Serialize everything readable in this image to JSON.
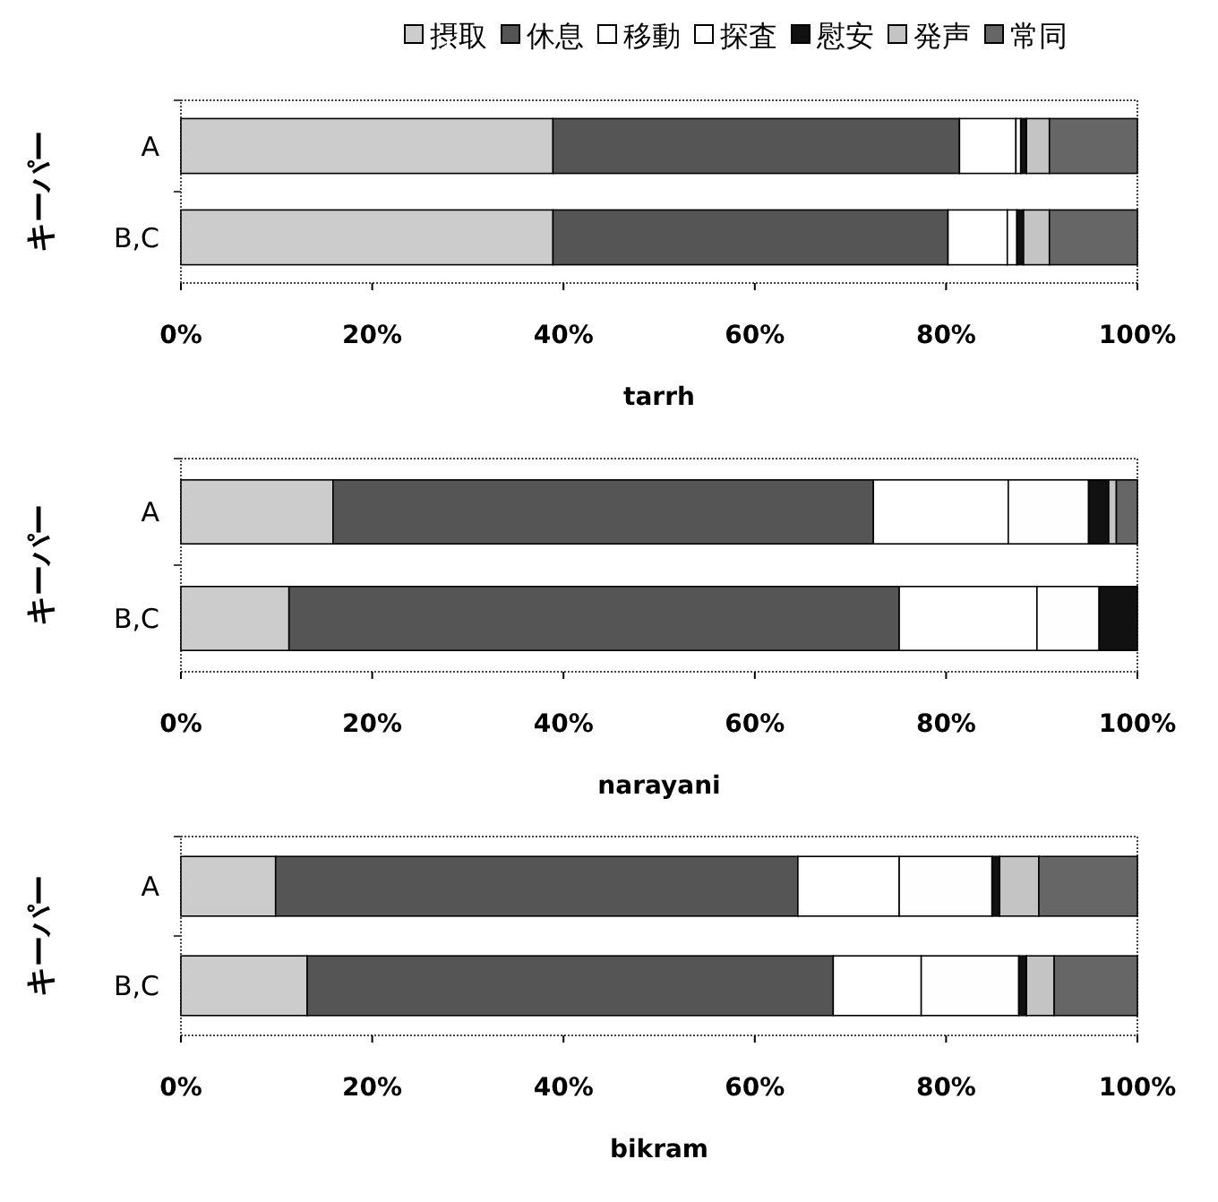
{
  "chart_data": [
    {
      "type": "bar",
      "orientation": "horizontal",
      "stacked": true,
      "xlabel": "tarrh",
      "ylabel": "キーパー",
      "categories": [
        "A",
        "B,C"
      ],
      "xlim": [
        0,
        100
      ],
      "xticks": [
        {
          "value": 0,
          "label": "0%"
        },
        {
          "value": 20,
          "label": "20%"
        },
        {
          "value": 40,
          "label": "40%"
        },
        {
          "value": 60,
          "label": "60%"
        },
        {
          "value": 80,
          "label": "80%"
        },
        {
          "value": 100,
          "label": "100%"
        }
      ],
      "legend": "top",
      "series": [
        {
          "name": "摂取",
          "color": "#cccccc",
          "values": [
            38.9,
            38.9
          ]
        },
        {
          "name": "休息",
          "color": "#555555",
          "values": [
            42.5,
            41.3
          ]
        },
        {
          "name": "移動",
          "color": "#ffffff",
          "values": [
            5.9,
            6.2
          ]
        },
        {
          "name": "探査",
          "color": "#fefefe",
          "values": [
            0.5,
            1.0
          ]
        },
        {
          "name": "慰安",
          "color": "#111111",
          "values": [
            0.6,
            0.7
          ]
        },
        {
          "name": "発声",
          "color": "#c4c4c4",
          "values": [
            2.4,
            2.7
          ]
        },
        {
          "name": "常同",
          "color": "#666666",
          "values": [
            9.2,
            9.2
          ]
        }
      ]
    },
    {
      "type": "bar",
      "orientation": "horizontal",
      "stacked": true,
      "xlabel": "narayani",
      "ylabel": "キーパー",
      "categories": [
        "A",
        "B,C"
      ],
      "xlim": [
        0,
        100
      ],
      "xticks": [
        {
          "value": 0,
          "label": "0%"
        },
        {
          "value": 20,
          "label": "20%"
        },
        {
          "value": 40,
          "label": "40%"
        },
        {
          "value": 60,
          "label": "60%"
        },
        {
          "value": 80,
          "label": "80%"
        },
        {
          "value": 100,
          "label": "100%"
        }
      ],
      "series": [
        {
          "color": "#cccccc",
          "values": [
            15.9,
            11.3
          ]
        },
        {
          "color": "#555555",
          "values": [
            56.5,
            63.8
          ]
        },
        {
          "color": "#ffffff",
          "values": [
            14.1,
            14.4
          ]
        },
        {
          "color": "#fefefe",
          "values": [
            8.4,
            6.5
          ]
        },
        {
          "color": "#111111",
          "values": [
            2.1,
            4.0
          ]
        },
        {
          "color": "#c4c4c4",
          "values": [
            0.8,
            0
          ]
        },
        {
          "color": "#666666",
          "values": [
            2.2,
            0
          ]
        }
      ]
    },
    {
      "type": "bar",
      "orientation": "horizontal",
      "stacked": true,
      "xlabel": "bikram",
      "ylabel": "キーパー",
      "categories": [
        "A",
        "B,C"
      ],
      "xlim": [
        0,
        100
      ],
      "xticks": [
        {
          "value": 0,
          "label": "0%"
        },
        {
          "value": 20,
          "label": "20%"
        },
        {
          "value": 40,
          "label": "40%"
        },
        {
          "value": 60,
          "label": "60%"
        },
        {
          "value": 80,
          "label": "80%"
        },
        {
          "value": 100,
          "label": "100%"
        }
      ],
      "series": [
        {
          "color": "#cccccc",
          "values": [
            9.9,
            13.2
          ]
        },
        {
          "color": "#555555",
          "values": [
            54.6,
            55.0
          ]
        },
        {
          "color": "#ffffff",
          "values": [
            10.6,
            9.2
          ]
        },
        {
          "color": "#fefefe",
          "values": [
            9.7,
            10.2
          ]
        },
        {
          "color": "#111111",
          "values": [
            0.8,
            0.8
          ]
        },
        {
          "color": "#c4c4c4",
          "values": [
            4.1,
            2.9
          ]
        },
        {
          "color": "#666666",
          "values": [
            10.3,
            8.7
          ]
        }
      ]
    }
  ]
}
